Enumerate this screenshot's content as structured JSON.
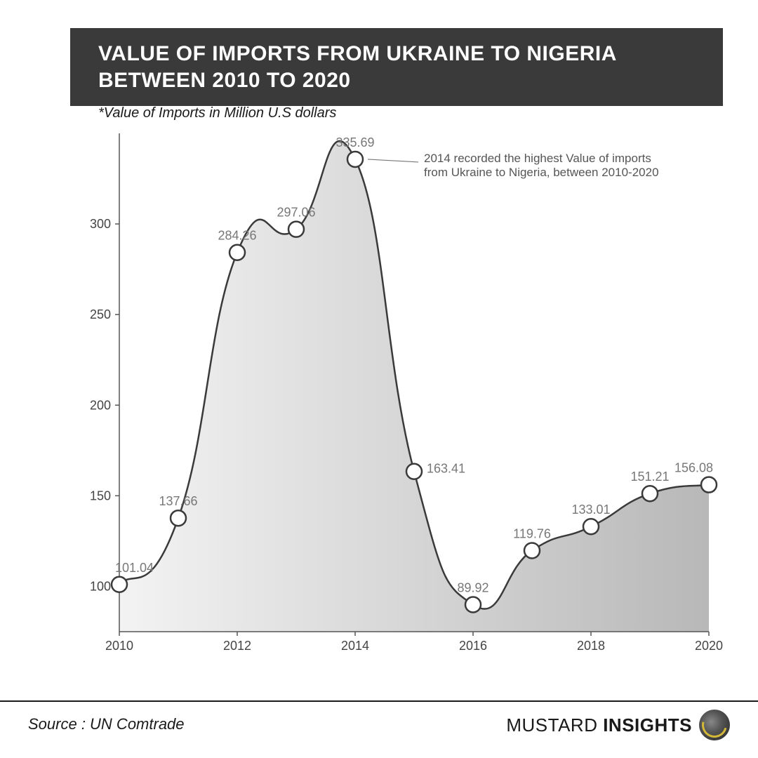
{
  "header": {
    "title_line1": "VALUE OF IMPORTS FROM UKRAINE TO NIGERIA",
    "title_line2": "BETWEEN 2010 TO 2020"
  },
  "subtitle": "*Value of Imports in Million U.S dollars",
  "chart": {
    "type": "area-line",
    "years": [
      2010,
      2011,
      2012,
      2013,
      2014,
      2015,
      2016,
      2017,
      2018,
      2019,
      2020
    ],
    "values": [
      101.04,
      137.66,
      284.26,
      297.06,
      335.69,
      163.41,
      89.92,
      119.76,
      133.01,
      151.21,
      156.08
    ],
    "x_ticks": [
      2010,
      2012,
      2014,
      2016,
      2018,
      2020
    ],
    "y_ticks": [
      100,
      150,
      200,
      250,
      300
    ],
    "ylim": [
      75,
      350
    ],
    "xlim": [
      2010,
      2020
    ],
    "line_color": "#3a3a3a",
    "line_width": 2.5,
    "marker_radius": 11,
    "marker_fill": "#ffffff",
    "marker_stroke": "#3a3a3a",
    "marker_stroke_width": 2.5,
    "area_gradient_start": "#f3f3f3",
    "area_gradient_end": "#b8b8b8",
    "axis_color": "#555555",
    "grid": false,
    "label_color": "#777777",
    "label_fontsize": 18,
    "tick_fontsize": 18,
    "annotation": {
      "text_line1": "2014 recorded the highest Value of imports",
      "text_line2": "from Ukraine to Nigeria, between 2010-2020",
      "target_index": 4,
      "leader_color": "#777777"
    }
  },
  "footer": {
    "source": "Source : UN Comtrade",
    "brand_light": "MUSTARD",
    "brand_bold": "INSIGHTS"
  }
}
